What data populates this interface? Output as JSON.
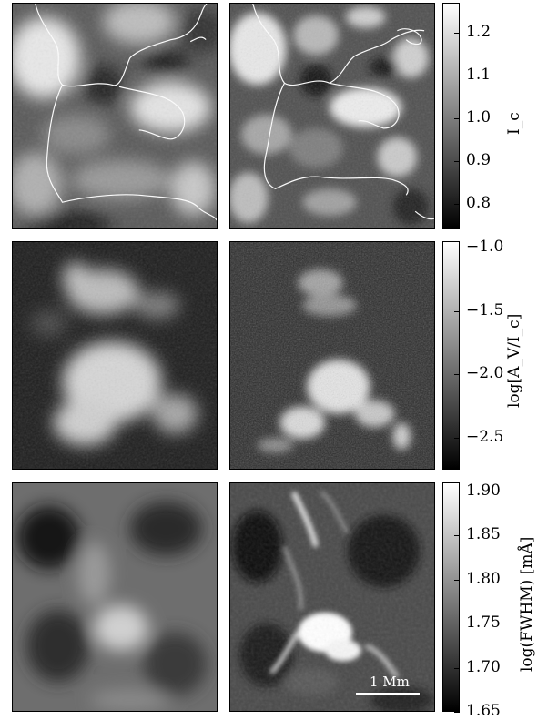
{
  "figure": {
    "rows": [
      {
        "name": "continuum-intensity",
        "colorbar_label": "I_c",
        "colorbar_ticks": [
          "1.2",
          "1.1",
          "1.0",
          "0.9",
          "0.8"
        ],
        "colorbar_range": [
          0.74,
          1.27
        ],
        "contour_overlay": true
      },
      {
        "name": "stokes-v-amplitude",
        "colorbar_label": "log[A_V/I_c]",
        "colorbar_ticks": [
          "-1.0",
          "-1.5",
          "-2.0",
          "-2.5"
        ],
        "colorbar_range": [
          -2.75,
          -0.95
        ],
        "contour_overlay": false
      },
      {
        "name": "line-width",
        "colorbar_label": "log(FWHM) [mÅ]",
        "colorbar_ticks": [
          "1.90",
          "1.85",
          "1.80",
          "1.75",
          "1.70",
          "1.65"
        ],
        "colorbar_range": [
          1.65,
          1.91
        ],
        "contour_overlay": false
      }
    ],
    "scale_bar": {
      "label": "1 Mm"
    }
  }
}
